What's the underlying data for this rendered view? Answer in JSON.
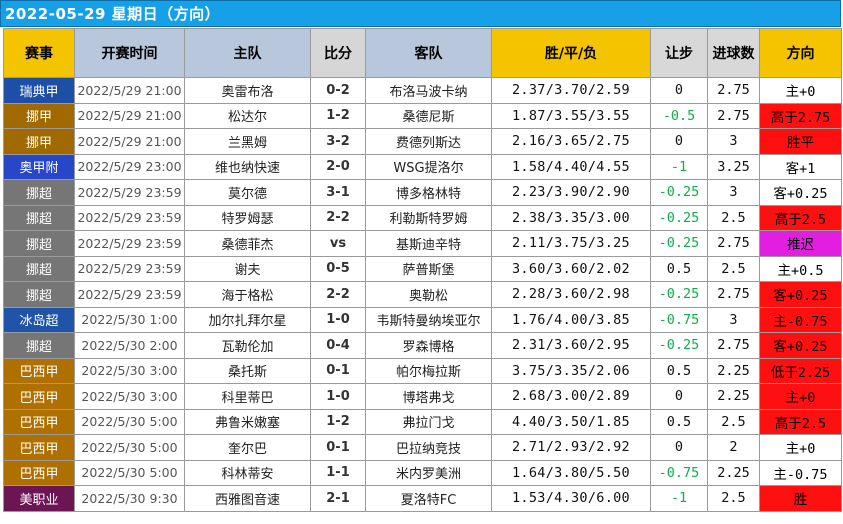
{
  "title": "2022-05-29 星期日（方向）",
  "headers": {
    "league": "赛事",
    "time": "开赛时间",
    "home": "主队",
    "score": "比分",
    "away": "客队",
    "odds": "胜/平/负",
    "handicap": "让步",
    "goals": "进球数",
    "direction": "方向"
  },
  "colors": {
    "league_by_name": {
      "瑞典甲": "#1c4fa5",
      "挪甲": "#a06a00",
      "奥甲附": "#2746c8",
      "挪超": "#767676",
      "冰岛超": "#1f54a9",
      "巴西甲": "#b07000",
      "美职业": "#6d1455"
    },
    "handicap_negative": "#0fae4a",
    "handicap_default": "#111111",
    "direction_red": "#ff1010",
    "direction_white": "#ffffff",
    "direction_magenta": "#e21ee0"
  },
  "rows": [
    {
      "league": "瑞典甲",
      "time": "2022/5/29 21:00",
      "home": "奥雷布洛",
      "score": "0-2",
      "away": "布洛马波卡纳",
      "odds": "2.37/3.70/2.59",
      "handicap": "0",
      "goals": "2.75",
      "direction": "主+0",
      "dir_bg": "white"
    },
    {
      "league": "挪甲",
      "time": "2022/5/29 21:00",
      "home": "松达尔",
      "score": "1-2",
      "away": "桑德尼斯",
      "odds": "1.87/3.55/3.55",
      "handicap": "-0.5",
      "goals": "2.75",
      "direction": "高于2.75",
      "dir_bg": "red"
    },
    {
      "league": "挪甲",
      "time": "2022/5/29 21:00",
      "home": "兰黑姆",
      "score": "3-2",
      "away": "费德列斯达",
      "odds": "2.16/3.65/2.75",
      "handicap": "0",
      "goals": "3",
      "direction": "胜平",
      "dir_bg": "red"
    },
    {
      "league": "奥甲附",
      "time": "2022/5/29 23:00",
      "home": "维也纳快速",
      "score": "2-0",
      "away": "WSG提洛尔",
      "odds": "1.58/4.40/4.55",
      "handicap": "-1",
      "goals": "3.25",
      "direction": "客+1",
      "dir_bg": "white"
    },
    {
      "league": "挪超",
      "time": "2022/5/29 23:59",
      "home": "莫尔德",
      "score": "3-1",
      "away": "博多格林特",
      "odds": "2.23/3.90/2.90",
      "handicap": "-0.25",
      "goals": "3",
      "direction": "客+0.25",
      "dir_bg": "white"
    },
    {
      "league": "挪超",
      "time": "2022/5/29 23:59",
      "home": "特罗姆瑟",
      "score": "2-2",
      "away": "利勒斯特罗姆",
      "odds": "2.38/3.35/3.00",
      "handicap": "-0.25",
      "goals": "2.5",
      "direction": "高于2.5",
      "dir_bg": "red"
    },
    {
      "league": "挪超",
      "time": "2022/5/29 23:59",
      "home": "桑德菲杰",
      "score": "vs",
      "away": "基斯迪辛特",
      "odds": "2.11/3.75/3.25",
      "handicap": "-0.25",
      "goals": "2.75",
      "direction": "推迟",
      "dir_bg": "magenta"
    },
    {
      "league": "挪超",
      "time": "2022/5/29 23:59",
      "home": "谢夫",
      "score": "0-5",
      "away": "萨普斯堡",
      "odds": "3.60/3.60/2.02",
      "handicap": "0.5",
      "goals": "2.5",
      "direction": "主+0.5",
      "dir_bg": "white"
    },
    {
      "league": "挪超",
      "time": "2022/5/29 23:59",
      "home": "海于格松",
      "score": "2-2",
      "away": "奥勒松",
      "odds": "2.28/3.60/2.98",
      "handicap": "-0.25",
      "goals": "2.75",
      "direction": "客+0.25",
      "dir_bg": "red"
    },
    {
      "league": "冰岛超",
      "time": "2022/5/30 1:00",
      "home": "加尔扎拜尔星",
      "score": "1-0",
      "away": "韦斯特曼纳埃亚尔",
      "odds": "1.76/4.00/3.85",
      "handicap": "-0.75",
      "goals": "3",
      "direction": "主-0.75",
      "dir_bg": "red"
    },
    {
      "league": "挪超",
      "time": "2022/5/30 2:00",
      "home": "瓦勒伦加",
      "score": "0-4",
      "away": "罗森博格",
      "odds": "2.31/3.60/2.95",
      "handicap": "-0.25",
      "goals": "2.75",
      "direction": "客+0.25",
      "dir_bg": "red"
    },
    {
      "league": "巴西甲",
      "time": "2022/5/30 3:00",
      "home": "桑托斯",
      "score": "0-1",
      "away": "帕尔梅拉斯",
      "odds": "3.75/3.35/2.06",
      "handicap": "0.5",
      "goals": "2.25",
      "direction": "低于2.25",
      "dir_bg": "red"
    },
    {
      "league": "巴西甲",
      "time": "2022/5/30 3:00",
      "home": "科里蒂巴",
      "score": "1-0",
      "away": "博塔弗戈",
      "odds": "2.68/3.00/2.89",
      "handicap": "0",
      "goals": "2.25",
      "direction": "主+0",
      "dir_bg": "red"
    },
    {
      "league": "巴西甲",
      "time": "2022/5/30 5:00",
      "home": "弗鲁米嫩塞",
      "score": "1-2",
      "away": "弗拉门戈",
      "odds": "4.40/3.50/1.85",
      "handicap": "0.5",
      "goals": "2.5",
      "direction": "高于2.5",
      "dir_bg": "red"
    },
    {
      "league": "巴西甲",
      "time": "2022/5/30 5:00",
      "home": "奎尔巴",
      "score": "0-1",
      "away": "巴拉纳竞技",
      "odds": "2.71/2.93/2.92",
      "handicap": "0",
      "goals": "2",
      "direction": "主+0",
      "dir_bg": "white"
    },
    {
      "league": "巴西甲",
      "time": "2022/5/30 5:00",
      "home": "科林蒂安",
      "score": "1-1",
      "away": "米内罗美洲",
      "odds": "1.64/3.80/5.50",
      "handicap": "-0.75",
      "goals": "2.25",
      "direction": "主-0.75",
      "dir_bg": "white"
    },
    {
      "league": "美职业",
      "time": "2022/5/30 9:30",
      "home": "西雅图音速",
      "score": "2-1",
      "away": "夏洛特FC",
      "odds": "1.53/4.30/6.00",
      "handicap": "-1",
      "goals": "2.5",
      "direction": "胜",
      "dir_bg": "red"
    }
  ]
}
